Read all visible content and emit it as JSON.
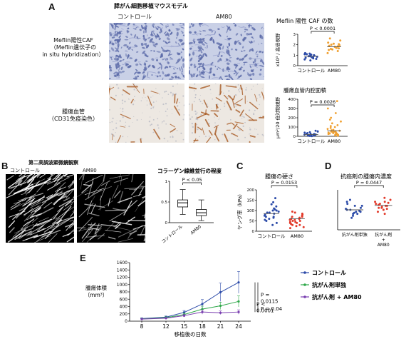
{
  "panelA": {
    "label": "A",
    "title": "膵がん細胞移植マウスモデル",
    "col_control": "コントロール",
    "col_am80": "AM80",
    "row1_label": [
      "Meflin陽性CAF",
      "（Meflin遺伝子の",
      "in situ hybridization）"
    ],
    "row2_label": [
      "腫瘍血管",
      "（CD31免疫染色）"
    ]
  },
  "panelB": {
    "label": "B",
    "title": "第二高調波顕微鏡観察",
    "col_control": "コントロール",
    "col_am80": "AM80"
  },
  "panelC": {
    "label": "C"
  },
  "panelD": {
    "label": "D"
  },
  "panelE": {
    "label": "E"
  },
  "colors": {
    "control": "#2b4aa8",
    "am80": "#f0a030",
    "red": "#e23a2a",
    "green": "#2fa84a",
    "purple": "#7a3fb0"
  },
  "chart_data": [
    {
      "id": "a-top",
      "type": "scatter",
      "title": "Meflin 陽性 CAF の数",
      "ylabel": "x10³ / 高倍視野",
      "categories": [
        "コントロール",
        "AM80"
      ],
      "ylim": [
        0,
        3
      ],
      "yticks": [
        0,
        1,
        2,
        3
      ],
      "pvalue": "P < 0.0001",
      "series": [
        {
          "name": "コントロール",
          "mean": 0.9,
          "values": [
            0.5,
            0.6,
            0.7,
            0.75,
            0.8,
            0.85,
            0.9,
            0.95,
            1.0,
            1.05,
            1.1,
            1.15,
            1.2,
            0.65,
            0.9,
            1.0,
            0.8,
            1.1
          ]
        },
        {
          "name": "AM80",
          "mean": 1.8,
          "values": [
            1.2,
            1.4,
            1.5,
            1.6,
            1.7,
            1.75,
            1.8,
            1.85,
            1.9,
            2.0,
            2.1,
            2.2,
            2.4,
            2.6,
            1.65,
            1.95,
            1.55,
            2.05
          ]
        }
      ]
    },
    {
      "id": "a-bottom",
      "type": "scatter",
      "title": "腫瘍血管内腔面積",
      "ylabel": "μm²/20 倍対物視野",
      "categories": [
        "コントロール",
        "AM80"
      ],
      "ylim": [
        0,
        400
      ],
      "yticks": [
        0,
        100,
        200,
        300,
        400
      ],
      "pvalue": "P = 0.0026",
      "series": [
        {
          "name": "コントロール",
          "mean": 20,
          "values": [
            2,
            4,
            5,
            6,
            8,
            10,
            12,
            14,
            15,
            18,
            20,
            22,
            25,
            28,
            30,
            35,
            40,
            45,
            50,
            55,
            60,
            8,
            12,
            16
          ]
        },
        {
          "name": "AM80",
          "mean": 60,
          "values": [
            5,
            10,
            15,
            20,
            25,
            30,
            35,
            40,
            45,
            50,
            55,
            60,
            65,
            70,
            80,
            90,
            100,
            110,
            120,
            140,
            160,
            180,
            200,
            250,
            300,
            380,
            20,
            30,
            40,
            50
          ]
        }
      ]
    },
    {
      "id": "b",
      "type": "box",
      "title": "コラーゲン線維並行の程度",
      "categories": [
        "コントロール",
        "AM80"
      ],
      "ylim": [
        0,
        1.0
      ],
      "yticks": [
        0,
        0.5,
        1.0
      ],
      "pvalue": "P < 0.05",
      "boxes": [
        {
          "min": 0.2,
          "q1": 0.38,
          "median": 0.48,
          "q3": 0.55,
          "max": 0.8
        },
        {
          "min": 0.05,
          "q1": 0.17,
          "median": 0.24,
          "q3": 0.32,
          "max": 0.55
        }
      ]
    },
    {
      "id": "c",
      "type": "scatter",
      "title": "腫瘍の硬さ",
      "ylabel": "ヤング率（kPa）",
      "categories": [
        "コントロール",
        "AM80"
      ],
      "ylim": [
        0,
        200
      ],
      "yticks": [
        0,
        50,
        100,
        150,
        200
      ],
      "pvalue": "P = 0.0153",
      "series": [
        {
          "name": "コントロール",
          "mean": 85,
          "values": [
            30,
            40,
            50,
            55,
            60,
            65,
            70,
            75,
            80,
            85,
            90,
            95,
            100,
            105,
            110,
            120,
            130,
            140,
            160,
            70,
            90,
            100
          ]
        },
        {
          "name": "AM80",
          "mean": 60,
          "values": [
            15,
            20,
            25,
            30,
            35,
            40,
            45,
            50,
            55,
            60,
            65,
            70,
            75,
            80,
            85,
            90,
            95,
            40,
            50,
            60,
            70,
            30,
            45,
            55
          ]
        }
      ]
    },
    {
      "id": "d",
      "type": "scatter",
      "title": "抗癌剤の腫瘍内濃度",
      "categories": [
        "抗がん剤単独",
        "抗がん剤 + AM80"
      ],
      "ylim": [
        0,
        0.2
      ],
      "yticks": [],
      "pvalue": "P = 0.0447",
      "series": [
        {
          "name": "抗がん剤単独",
          "mean": 0.1,
          "values": [
            0.06,
            0.07,
            0.08,
            0.085,
            0.09,
            0.095,
            0.1,
            0.105,
            0.11,
            0.12,
            0.13,
            0.14,
            0.15,
            0.1,
            0.09,
            0.08,
            0.12
          ]
        },
        {
          "name": "抗がん剤 + AM80",
          "mean": 0.122,
          "values": [
            0.08,
            0.09,
            0.1,
            0.105,
            0.11,
            0.115,
            0.12,
            0.125,
            0.13,
            0.135,
            0.14,
            0.15,
            0.16,
            0.12,
            0.13,
            0.11,
            0.14
          ]
        }
      ]
    },
    {
      "id": "e",
      "type": "line",
      "ylabel": [
        "腫瘍体積",
        "（mm³）"
      ],
      "xlabel": "移植後の日数",
      "x": [
        8,
        12,
        15,
        18,
        21,
        24
      ],
      "ylim": [
        0,
        1600
      ],
      "yticks": [
        0,
        200,
        400,
        600,
        800,
        1000,
        1200,
        1400,
        1600
      ],
      "series": [
        {
          "name": "コントロール",
          "values": [
            70,
            110,
            240,
            470,
            790,
            1060
          ],
          "err": [
            20,
            30,
            50,
            120,
            250,
            300
          ]
        },
        {
          "name": "抗がん剤単独",
          "values": [
            60,
            95,
            180,
            330,
            420,
            540
          ],
          "err": [
            15,
            25,
            40,
            80,
            100,
            150
          ]
        },
        {
          "name": "抗がん剤 + AM80",
          "values": [
            55,
            80,
            150,
            250,
            230,
            250
          ],
          "err": [
            15,
            20,
            35,
            60,
            50,
            60
          ]
        }
      ],
      "annotations": {
        "p_top": "P =",
        "p_top_val": "0.0115",
        "p_left": "P <",
        "p_left_val": "0.0001",
        "p_bottom": "P = 0.04"
      }
    }
  ]
}
